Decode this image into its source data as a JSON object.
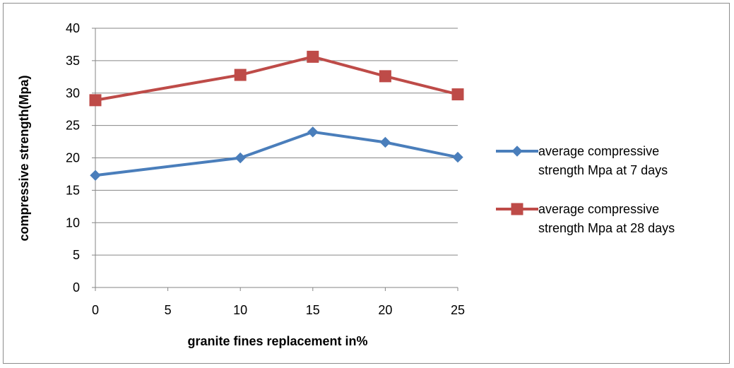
{
  "chart_data": {
    "type": "line",
    "x": [
      0,
      10,
      15,
      20,
      25
    ],
    "series": [
      {
        "name": "average compressive strength Mpa at 7 days",
        "values": [
          17.3,
          20.0,
          24.0,
          22.4,
          20.1
        ],
        "color": "#4a7ebb",
        "marker": "diamond"
      },
      {
        "name": "average compressive strength Mpa at 28 days",
        "values": [
          28.9,
          32.8,
          35.6,
          32.6,
          29.8
        ],
        "color": "#be4b48",
        "marker": "square"
      }
    ],
    "xlabel": "granite fines replacement in%",
    "ylabel": "compressive strength(Mpa)",
    "xticks": [
      "0",
      "5",
      "10",
      "15",
      "20",
      "25"
    ],
    "yticks": [
      "0",
      "5",
      "10",
      "15",
      "20",
      "25",
      "30",
      "35",
      "40"
    ],
    "xlim": [
      0,
      25
    ],
    "ylim": [
      0,
      40
    ],
    "grid": "horizontal",
    "legend_position": "right",
    "legend_labels": [
      [
        "average compressive",
        "strength Mpa at 7 days"
      ],
      [
        "average compressive",
        "strength Mpa at 28 days"
      ]
    ]
  }
}
